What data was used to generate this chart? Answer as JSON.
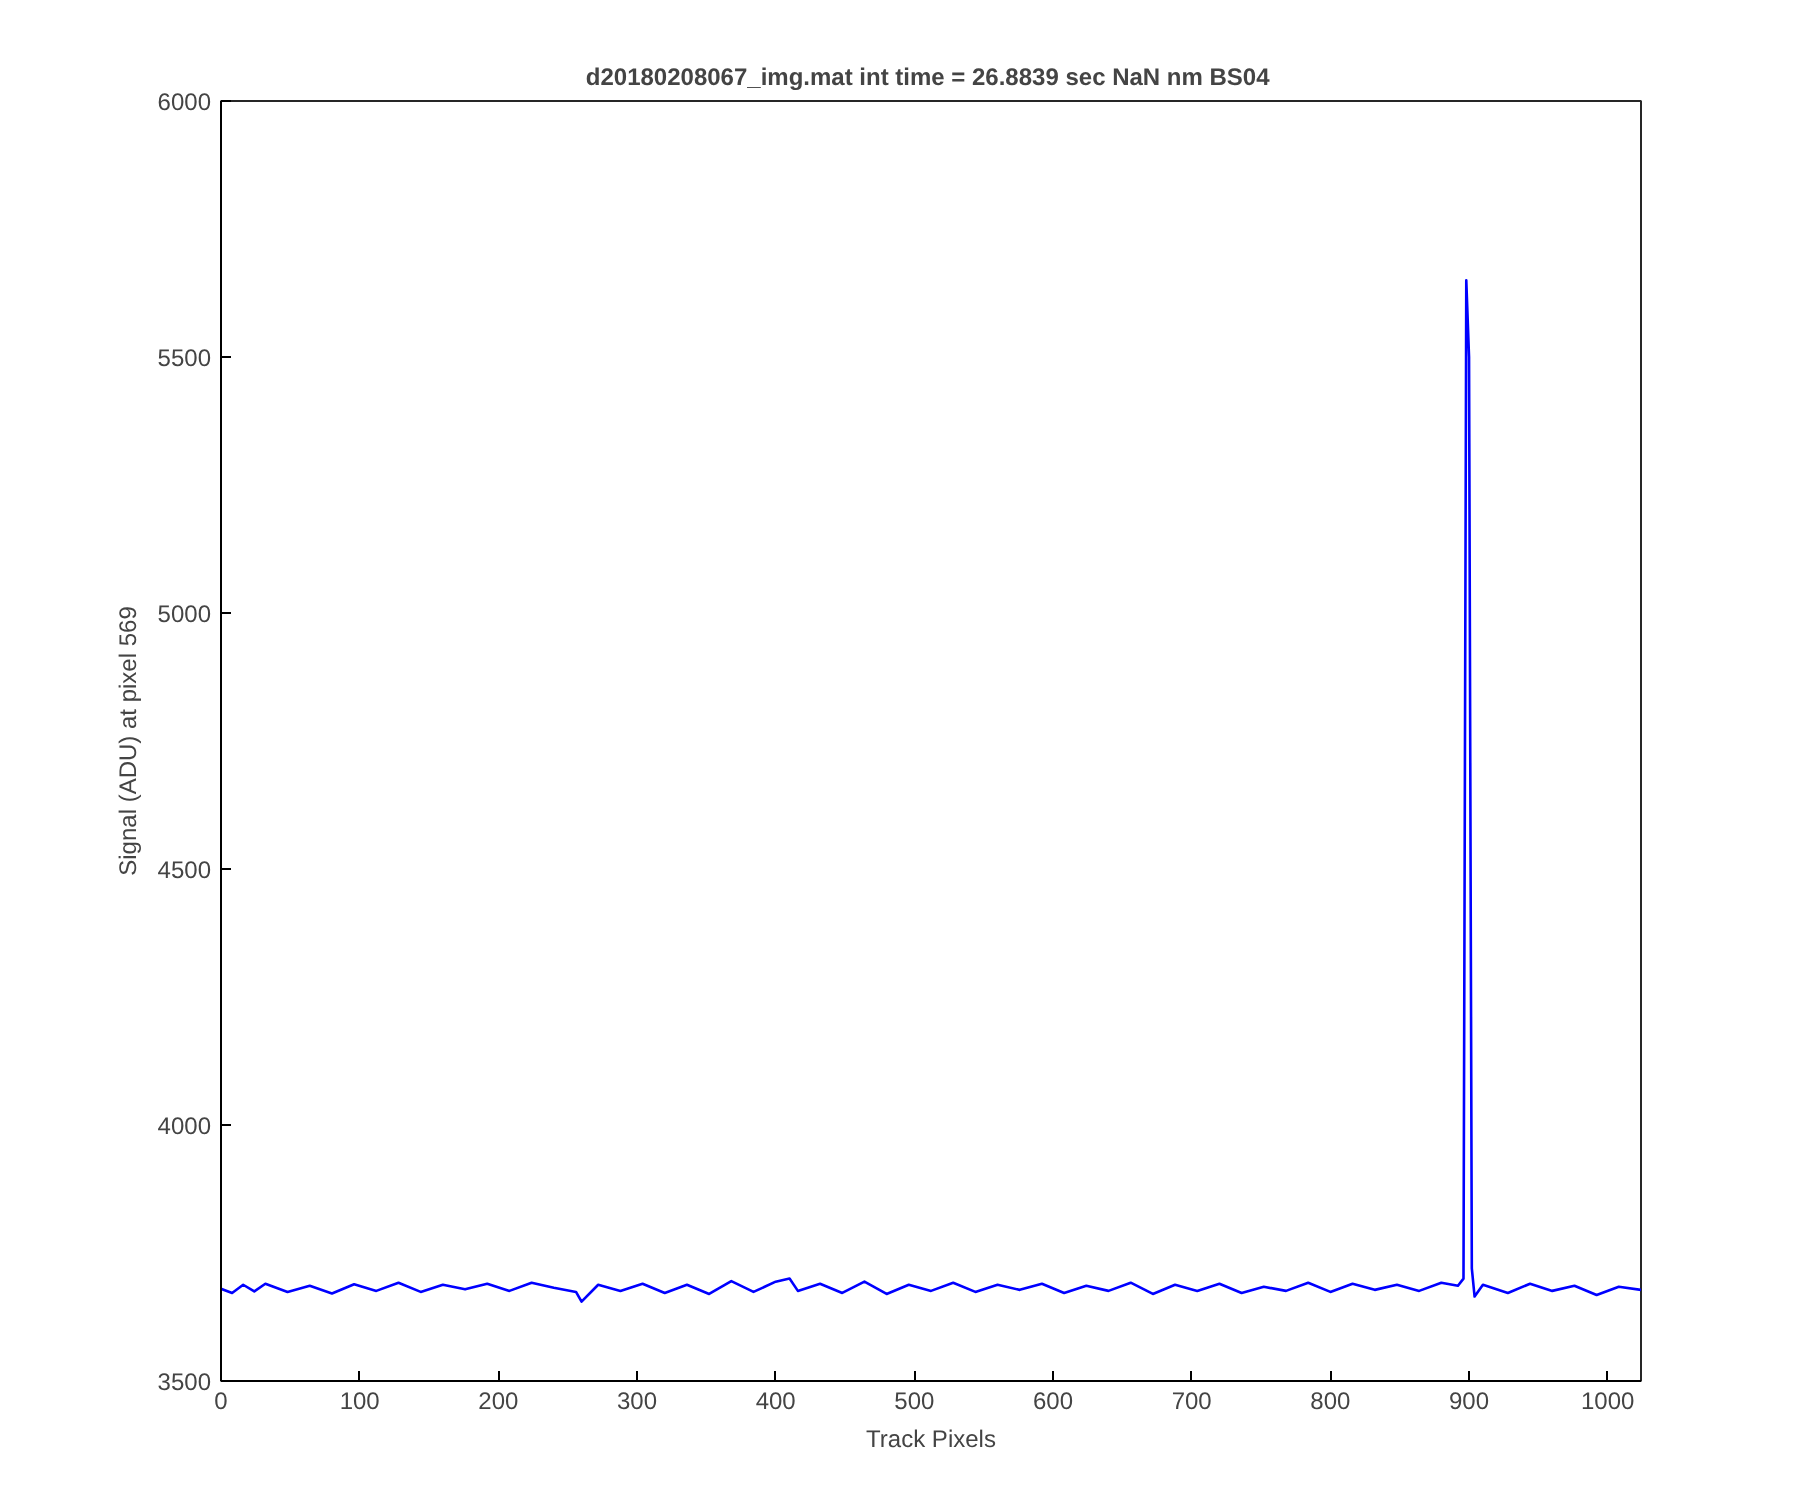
{
  "chart_data": {
    "type": "line",
    "title": "d20180208067_img.mat int time = 26.8839 sec  NaN nm BS04",
    "xlabel": "Track Pixels",
    "ylabel": "Signal (ADU) at pixel 569",
    "xlim": [
      0,
      1024
    ],
    "ylim": [
      3500,
      6000
    ],
    "xticks": [
      0,
      100,
      200,
      300,
      400,
      500,
      600,
      700,
      800,
      900,
      1000
    ],
    "yticks": [
      3500,
      4000,
      4500,
      5000,
      5500,
      6000
    ],
    "grid": false,
    "marker": "none",
    "line_style": "solid",
    "series": [
      {
        "color": "#0000ff",
        "x": [
          0,
          8,
          16,
          24,
          32,
          48,
          64,
          80,
          96,
          112,
          128,
          144,
          160,
          176,
          192,
          208,
          224,
          240,
          256,
          260,
          272,
          288,
          304,
          320,
          336,
          352,
          368,
          384,
          400,
          410,
          416,
          432,
          448,
          464,
          480,
          496,
          512,
          528,
          544,
          560,
          576,
          592,
          608,
          624,
          640,
          656,
          672,
          688,
          704,
          720,
          736,
          752,
          768,
          784,
          800,
          816,
          832,
          848,
          864,
          880,
          892,
          896,
          898,
          900,
          902,
          904,
          910,
          928,
          944,
          960,
          976,
          992,
          1008,
          1024
        ],
        "values": [
          3680,
          3672,
          3688,
          3675,
          3690,
          3674,
          3686,
          3671,
          3689,
          3676,
          3692,
          3674,
          3688,
          3679,
          3690,
          3676,
          3692,
          3682,
          3674,
          3655,
          3688,
          3676,
          3690,
          3672,
          3688,
          3670,
          3695,
          3674,
          3694,
          3700,
          3676,
          3690,
          3672,
          3694,
          3670,
          3688,
          3676,
          3692,
          3674,
          3688,
          3678,
          3690,
          3672,
          3686,
          3676,
          3692,
          3670,
          3688,
          3676,
          3690,
          3672,
          3684,
          3676,
          3692,
          3674,
          3690,
          3678,
          3688,
          3676,
          3692,
          3686,
          3700,
          5650,
          5500,
          3720,
          3665,
          3688,
          3672,
          3690,
          3676,
          3686,
          3668,
          3684,
          3678
        ]
      }
    ]
  }
}
